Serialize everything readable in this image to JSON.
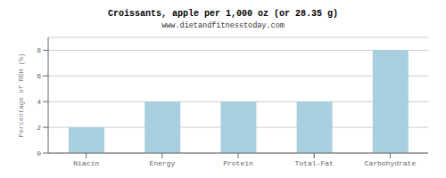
{
  "chart_data": {
    "type": "bar",
    "title": "Croissants, apple per 1,000 oz (or 28.35 g)",
    "subtitle": "www.dietandfitnesstoday.com",
    "categories": [
      "Niacin",
      "Energy",
      "Protein",
      "Total-Fat",
      "Carbohydrate"
    ],
    "values": [
      2,
      4,
      4,
      4,
      8
    ],
    "color": "#a8cfe0",
    "ylabel": "Percentage of RDH (%)",
    "ylim": [
      0,
      9
    ],
    "yticks": [
      0,
      2,
      4,
      6,
      8
    ],
    "grid": true
  }
}
